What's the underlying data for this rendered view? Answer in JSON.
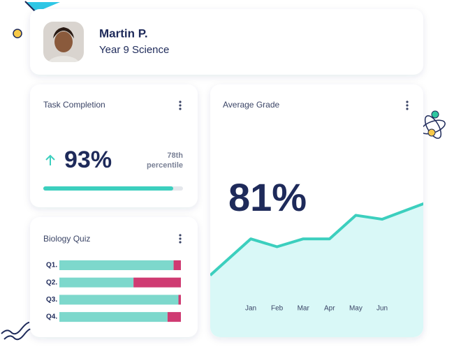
{
  "profile": {
    "name": "Martin P.",
    "subtitle": "Year 9 Science"
  },
  "task_completion": {
    "title": "Task Completion",
    "value": 93,
    "value_label": "93%",
    "percentile": [
      "78th",
      "percentile"
    ],
    "color": "#3ccfbe"
  },
  "biology_quiz": {
    "title": "Biology Quiz",
    "categories": [
      "Q1.",
      "Q2.",
      "Q3.",
      "Q4."
    ],
    "series": [
      {
        "color": "#7dd8cc",
        "values": [
          94,
          61,
          98,
          89
        ]
      },
      {
        "color": "#cf3b72",
        "values": [
          6,
          39,
          2,
          11
        ]
      }
    ]
  },
  "average_grade": {
    "title": "Average Grade",
    "value_label": "81%",
    "type": "line",
    "categories": [
      null,
      "Jan",
      "Feb",
      "Mar",
      "Apr",
      "May",
      "Jun",
      null
    ],
    "values": [
      37,
      49,
      45,
      49,
      49,
      61,
      59,
      64
    ],
    "color": "#3ccfbe",
    "fill": "#d9f8f7"
  }
}
